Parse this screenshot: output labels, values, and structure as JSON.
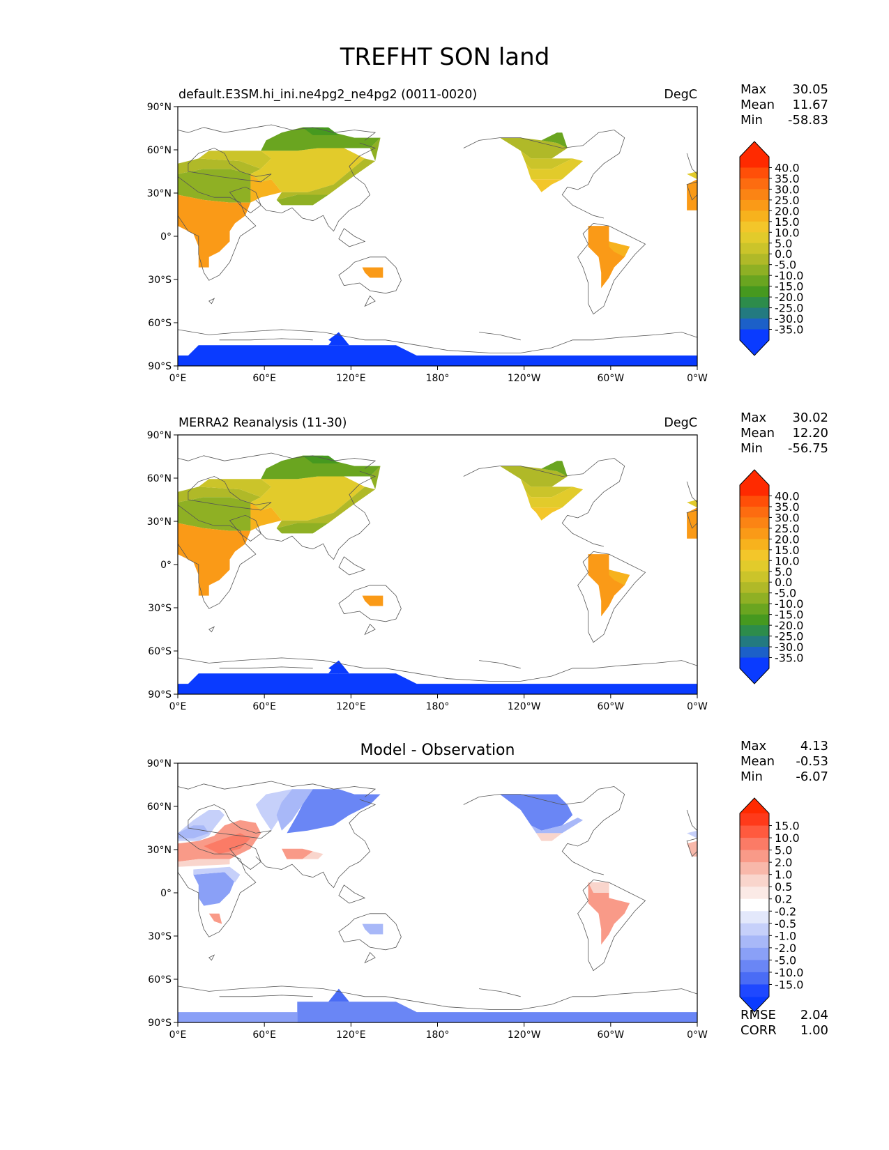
{
  "title": "TREFHT SON land",
  "lat_ticks": [
    "90°N",
    "60°N",
    "30°N",
    "0°",
    "30°S",
    "60°S",
    "90°S"
  ],
  "lon_ticks": [
    "0°E",
    "60°E",
    "120°E",
    "180°",
    "120°W",
    "60°W",
    "0°W"
  ],
  "panels": [
    {
      "id": "model",
      "left_title": "default.E3SM.hi_ini.ne4pg2_ne4pg2 (0011-0020)",
      "center_title": "",
      "right_title": "DegC",
      "stats": [
        {
          "label": "Max",
          "value": "30.05"
        },
        {
          "label": "Mean",
          "value": "11.67"
        },
        {
          "label": "Min",
          "value": "-58.83"
        }
      ],
      "colorbar": {
        "labels": [
          "40.0",
          "35.0",
          "30.0",
          "25.0",
          "20.0",
          "15.0",
          "10.0",
          "5.0",
          "0.0",
          "-5.0",
          "-10.0",
          "-15.0",
          "-20.0",
          "-25.0",
          "-30.0",
          "-35.0"
        ],
        "colors": [
          "#ff2a00",
          "#ff4f08",
          "#fd6c10",
          "#fb8414",
          "#fa9a17",
          "#f7b21d",
          "#f3c62a",
          "#e2cb2b",
          "#cbc42a",
          "#b0b928",
          "#8fb024",
          "#6aa520",
          "#46991f",
          "#2d8c4b",
          "#237a80",
          "#1c60c8",
          "#0a3bff"
        ],
        "over_color": "#ff2a00",
        "under_color": "#0a3bff"
      }
    },
    {
      "id": "obs",
      "left_title": "MERRA2 Reanalysis (11-30)",
      "center_title": "",
      "right_title": "DegC",
      "stats": [
        {
          "label": "Max",
          "value": "30.02"
        },
        {
          "label": "Mean",
          "value": "12.20"
        },
        {
          "label": "Min",
          "value": "-56.75"
        }
      ],
      "colorbar": {
        "labels": [
          "40.0",
          "35.0",
          "30.0",
          "25.0",
          "20.0",
          "15.0",
          "10.0",
          "5.0",
          "0.0",
          "-5.0",
          "-10.0",
          "-15.0",
          "-20.0",
          "-25.0",
          "-30.0",
          "-35.0"
        ],
        "colors": [
          "#ff2a00",
          "#ff4f08",
          "#fd6c10",
          "#fb8414",
          "#fa9a17",
          "#f7b21d",
          "#f3c62a",
          "#e2cb2b",
          "#cbc42a",
          "#b0b928",
          "#8fb024",
          "#6aa520",
          "#46991f",
          "#2d8c4b",
          "#237a80",
          "#1c60c8",
          "#0a3bff"
        ],
        "over_color": "#ff2a00",
        "under_color": "#0a3bff"
      }
    },
    {
      "id": "diff",
      "left_title": "",
      "center_title": "Model - Observation",
      "right_title": "",
      "stats": [
        {
          "label": "Max",
          "value": "4.13"
        },
        {
          "label": "Mean",
          "value": "-0.53"
        },
        {
          "label": "Min",
          "value": "-6.07"
        }
      ],
      "extra_stats": [
        {
          "label": "RMSE",
          "value": "2.04"
        },
        {
          "label": "CORR",
          "value": "1.00"
        }
      ],
      "colorbar": {
        "labels": [
          "15.0",
          "10.0",
          "5.0",
          "2.0",
          "1.0",
          "0.5",
          "0.2",
          "-0.2",
          "-0.5",
          "-1.0",
          "-2.0",
          "-5.0",
          "-10.0",
          "-15.0"
        ],
        "colors": [
          "#ff3a1a",
          "#ff5a3e",
          "#fb7b66",
          "#f99a88",
          "#f8b8aa",
          "#f9d5cc",
          "#fbeae6",
          "#ffffff",
          "#e3e8fb",
          "#c6d0fa",
          "#a8b8f8",
          "#8aa0f7",
          "#6a86f5",
          "#4a6cf5",
          "#1f48ff"
        ],
        "over_color": "#ff2a00",
        "under_color": "#0a3bff"
      }
    }
  ]
}
